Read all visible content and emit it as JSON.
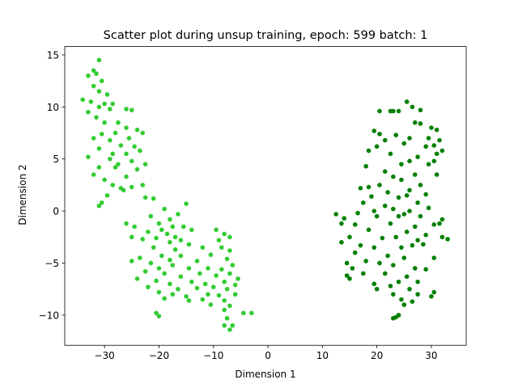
{
  "chart_data": {
    "type": "scatter",
    "title": "Scatter plot during unsup training, epoch: 599 batch: 1",
    "xlabel": "Dimension 1",
    "ylabel": "Dimension 2",
    "xlim": [
      -37.3,
      36.4
    ],
    "ylim": [
      -12.9,
      15.8
    ],
    "xticks": [
      {
        "value": -30,
        "label": "−30"
      },
      {
        "value": -20,
        "label": "−20"
      },
      {
        "value": -10,
        "label": "−10"
      },
      0,
      10,
      20,
      30
    ],
    "yticks": [
      {
        "value": -10,
        "label": "−10"
      },
      {
        "value": -5,
        "label": "−5"
      },
      0,
      5,
      10,
      15
    ],
    "series": [
      {
        "color": "#33cc33",
        "x": [
          -31,
          -32,
          -33,
          -31.5,
          -30.5,
          -32,
          -31,
          -29.5,
          -34,
          -32.5,
          -31,
          -30,
          -33,
          -29,
          -28.5,
          -31.5,
          -30,
          -26,
          -25,
          -27.5,
          -26,
          -24,
          -28,
          -30.5,
          -25.5,
          -23,
          -32,
          -29,
          -27,
          -24.5,
          -31,
          -28.5,
          -26,
          -23.5,
          -33,
          -29,
          -25,
          -27.5,
          -22.5,
          -31,
          -28,
          -24,
          -32,
          -26,
          -30,
          -28.5,
          -27,
          -25,
          -23,
          -29.5,
          -26.5,
          -30.5,
          -31,
          -21,
          -22.5,
          -19,
          -15,
          -21.5,
          -18,
          -20,
          -16.5,
          -17.5,
          -26,
          -24.5,
          -19.5,
          -15.5,
          -14,
          -22,
          -18.5,
          -17,
          -20.5,
          -25,
          -23,
          -16,
          -18,
          -9.5,
          -8,
          -9,
          -7,
          -14.5,
          -21,
          -17,
          -12,
          -8.5,
          -7,
          -23.5,
          -19.5,
          -16,
          -10.5,
          -18,
          -13,
          -7.5,
          -25,
          -21.5,
          -17.5,
          -20,
          -14.5,
          -11,
          -6.5,
          -8.5,
          -22.5,
          -19,
          -16,
          -12.5,
          -9.5,
          -7,
          -5.5,
          -24,
          -20.5,
          -18,
          -14,
          -11.5,
          -8,
          -6,
          -22,
          -16.5,
          -13,
          -10,
          -7.5,
          -20,
          -17.5,
          -15,
          -11,
          -9,
          -6,
          -19,
          -14.5,
          -12,
          -8,
          -10.5,
          -7,
          -20.5,
          -20,
          -4.5,
          -3,
          -8,
          -7.5,
          -6.5,
          -7,
          -8
        ],
        "values": [
          14.5,
          13.5,
          13,
          13.2,
          12.5,
          12,
          11.5,
          11.2,
          10.7,
          10.5,
          10,
          10.3,
          9.5,
          9.8,
          10.3,
          9,
          8.5,
          9.8,
          9.7,
          8.5,
          8,
          7.8,
          7.5,
          7.4,
          7,
          7.5,
          7,
          6.8,
          6.3,
          6.2,
          6,
          5.5,
          5.5,
          5.8,
          5.2,
          5,
          4.8,
          4.5,
          4.5,
          4.2,
          4.2,
          4,
          3.5,
          3.3,
          3,
          2.5,
          2.2,
          2.3,
          2.5,
          1.5,
          2,
          0.8,
          0.5,
          1.2,
          1.3,
          0.2,
          0.7,
          -0.5,
          -0.8,
          -1.2,
          -0.3,
          -1.5,
          -1.2,
          -1.5,
          -1.8,
          -1.5,
          -1.8,
          -2,
          -2.2,
          -2.5,
          -2.6,
          -2.5,
          -2.7,
          -2.8,
          -3,
          -1.8,
          -2.2,
          -2.8,
          -2.5,
          -3.2,
          -3.5,
          -3.7,
          -3.5,
          -3.5,
          -3.8,
          -4.5,
          -4.3,
          -4.3,
          -4.2,
          -4.7,
          -4.8,
          -4.6,
          -4.8,
          -5,
          -5.2,
          -5.5,
          -5.5,
          -5.5,
          -5.2,
          -5.6,
          -5.8,
          -6,
          -6.3,
          -6,
          -6.2,
          -6,
          -6.5,
          -6.5,
          -6.7,
          -7,
          -6.8,
          -7,
          -6.8,
          -7.1,
          -7.3,
          -7.5,
          -7.4,
          -7.3,
          -7.5,
          -7.8,
          -8,
          -8.2,
          -8,
          -8.1,
          -8,
          -8.4,
          -8.6,
          -8.5,
          -8.6,
          -9,
          -9.1,
          -9.8,
          -10.1,
          -9.8,
          -9.8,
          -9.5,
          -10.3,
          -11,
          -11.4,
          -11
        ]
      },
      {
        "color": "#008000",
        "x": [
          25.5,
          24,
          23,
          22.5,
          26.5,
          28,
          20.5,
          27,
          28,
          30,
          31,
          19.5,
          20.5,
          23.5,
          26,
          29.5,
          21.5,
          25,
          31.5,
          30.5,
          29,
          20,
          18.5,
          22.5,
          27.5,
          31,
          32,
          26,
          24.5,
          18,
          29.5,
          30.5,
          21.5,
          23,
          27,
          31,
          24.5,
          28,
          18.5,
          20.5,
          26,
          22,
          17,
          29,
          19,
          24,
          25.5,
          17.5,
          21.5,
          27.5,
          23,
          19.5,
          26,
          29.5,
          16.5,
          12.5,
          14,
          20,
          24,
          25,
          28,
          13.5,
          16,
          22.5,
          27,
          30.5,
          31.5,
          32,
          18.5,
          25.5,
          29,
          15,
          21,
          23.5,
          27.5,
          32,
          33,
          13.5,
          17,
          19.5,
          24.5,
          26.5,
          28.5,
          16,
          22,
          25,
          30.5,
          18,
          20.5,
          23,
          27,
          14.5,
          15.5,
          29,
          17.5,
          21.5,
          25.5,
          14.5,
          15,
          24,
          27.5,
          19.5,
          22.5,
          26,
          20,
          23,
          24.5,
          27.5,
          30.5,
          30,
          26.5,
          25,
          24,
          23.5,
          23
        ],
        "values": [
          10.5,
          9.6,
          9.6,
          9.6,
          10,
          9.7,
          9.6,
          8.5,
          8.4,
          8,
          7.8,
          7.7,
          7.4,
          7.3,
          7,
          7,
          6.8,
          6.5,
          6.8,
          6.3,
          6.2,
          6.2,
          5.8,
          5.5,
          5.2,
          5.5,
          5.8,
          4.8,
          4.5,
          4.3,
          4.5,
          4.8,
          3.8,
          3.3,
          3.5,
          3.5,
          3,
          2.5,
          2.3,
          2.5,
          2,
          1.8,
          2.2,
          1.6,
          1.4,
          1.3,
          1.5,
          0.8,
          0.5,
          0.8,
          0.2,
          0,
          0,
          0.3,
          -0.2,
          -0.3,
          -0.7,
          -0.5,
          -0.5,
          -0.3,
          -0.5,
          -1.2,
          -1.3,
          -1.2,
          -1.5,
          -1.3,
          -1.2,
          -0.8,
          -1.8,
          -2,
          -2.3,
          -2.5,
          -2.6,
          -2.5,
          -2.8,
          -2.5,
          -2.7,
          -3,
          -3.3,
          -3.5,
          -3.5,
          -3.3,
          -3.2,
          -4,
          -4.3,
          -4.5,
          -4.5,
          -4.8,
          -5,
          -5.2,
          -5.5,
          -5,
          -5.5,
          -5.6,
          -6,
          -6,
          -6.3,
          -6.2,
          -6.5,
          -6.8,
          -6.8,
          -7,
          -7.2,
          -7.5,
          -7.5,
          -8,
          -8.5,
          -8,
          -7.8,
          -8.2,
          -8.7,
          -9,
          -10,
          -10.2,
          -10.3
        ]
      }
    ]
  }
}
